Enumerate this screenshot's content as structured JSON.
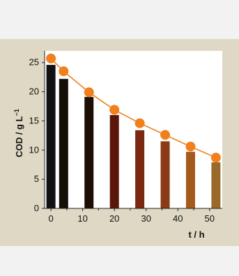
{
  "chart_data": {
    "type": "bar",
    "xlabel": "t / h",
    "ylabel": "COD / g L",
    "ylabel_superscript": "−1",
    "xlim": [
      -2,
      54
    ],
    "ylim": [
      0,
      27
    ],
    "xticks": [
      0,
      10,
      20,
      30,
      40,
      50
    ],
    "yticks": [
      0,
      5,
      10,
      15,
      20,
      25
    ],
    "bars": {
      "x": [
        0,
        4,
        12,
        20,
        28,
        36,
        44,
        52
      ],
      "values": [
        24.6,
        22.2,
        19.1,
        16.0,
        13.4,
        11.5,
        9.7,
        7.9
      ],
      "colors": [
        "#111111",
        "#141008",
        "#1c0d06",
        "#5a1608",
        "#7a2810",
        "#8a3a14",
        "#a45a1c",
        "#9a6a2a"
      ]
    },
    "series": [
      {
        "x": [
          0,
          4,
          12,
          20,
          28,
          36,
          44,
          52
        ],
        "values": [
          25.7,
          23.5,
          19.9,
          16.9,
          14.6,
          12.6,
          10.6,
          8.7
        ],
        "color": "#f07f1c"
      }
    ]
  }
}
